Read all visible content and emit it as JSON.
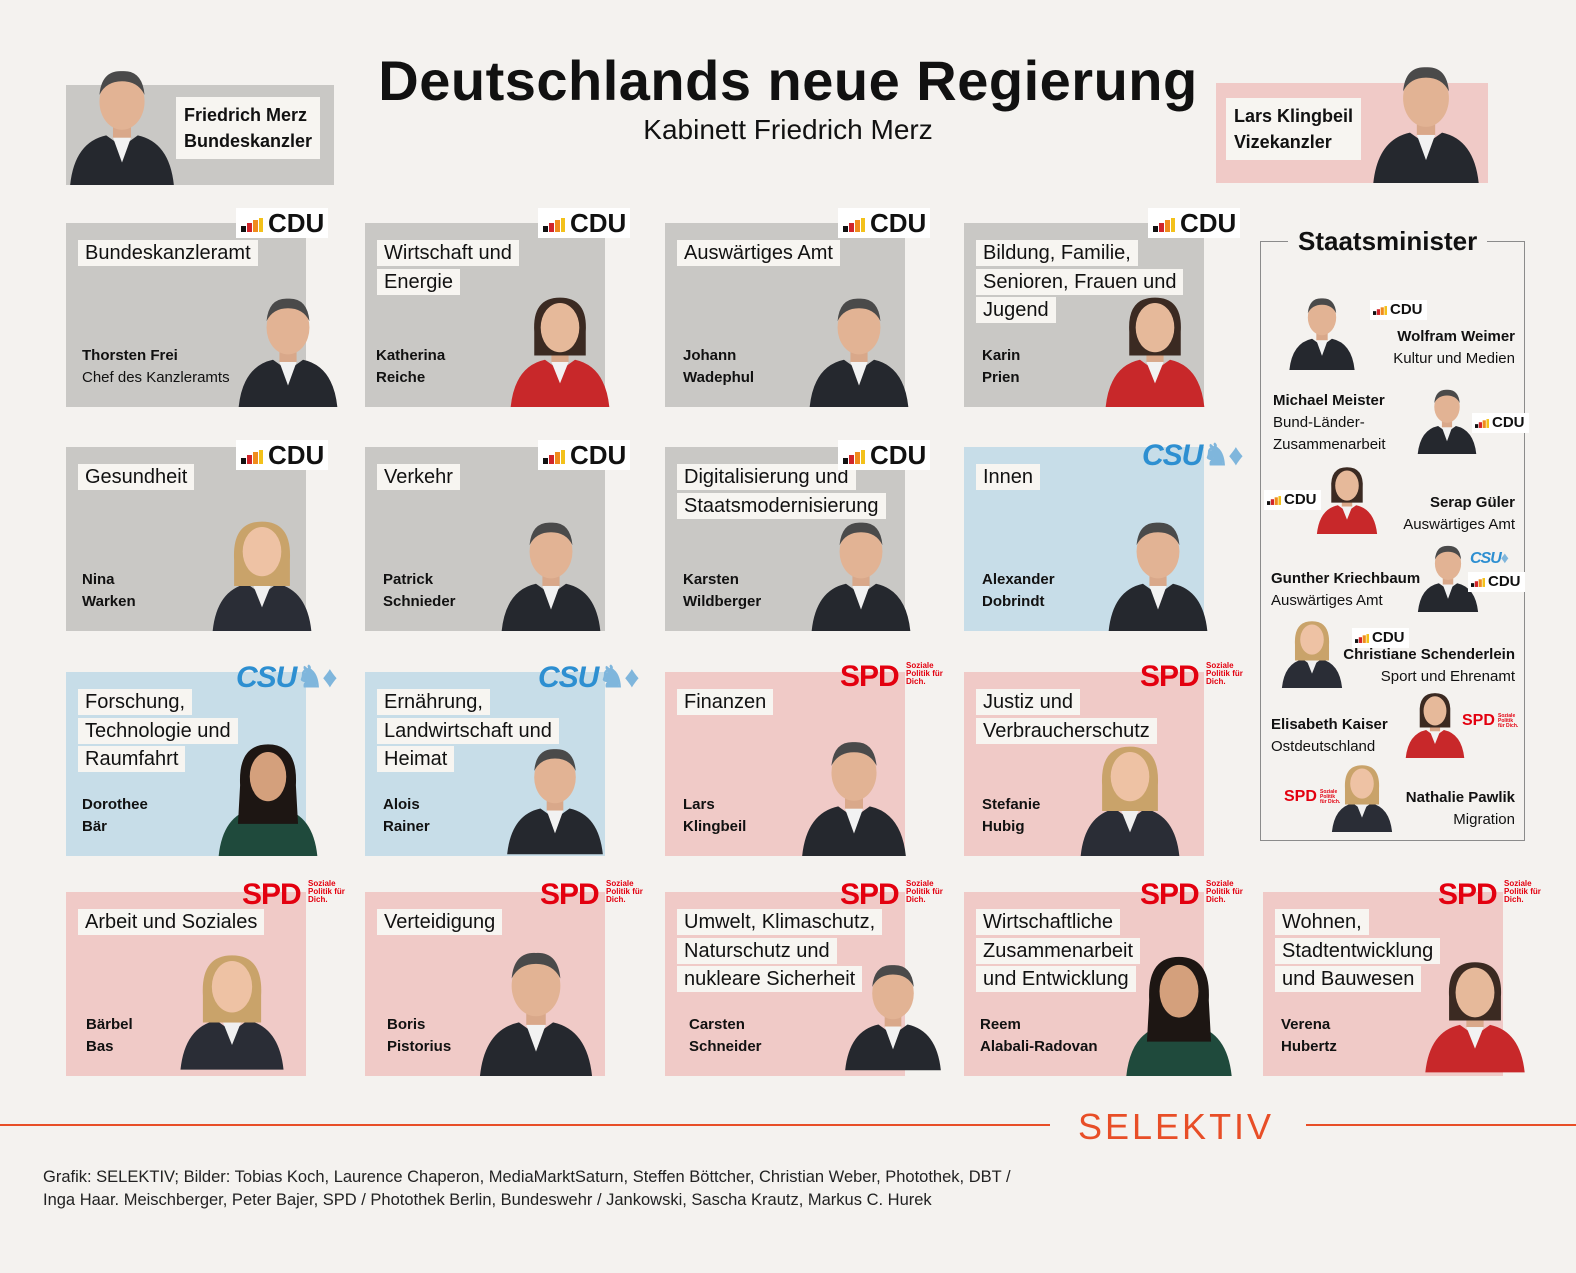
{
  "header": {
    "title": "Deutschlands neue Regierung",
    "subtitle": "Kabinett Friedrich Merz"
  },
  "chancellor": {
    "name": "Friedrich Merz",
    "role": "Bundeskanzler"
  },
  "vice": {
    "name": "Lars Klingbeil",
    "role": "Vizekanzler"
  },
  "ministries": [
    {
      "label": "Bundeskanzleramt",
      "name": "Thorsten Frei",
      "role": "Chef des Kanzleramts",
      "party": "CDU"
    },
    {
      "label": "Wirtschaft und Energie",
      "name1": "Katherina",
      "name2": "Reiche",
      "party": "CDU"
    },
    {
      "label": "Auswärtiges Amt",
      "name1": "Johann",
      "name2": "Wadephul",
      "party": "CDU"
    },
    {
      "label": "Bildung, Familie, Senioren, Frauen und Jugend",
      "name1": "Karin",
      "name2": "Prien",
      "party": "CDU"
    },
    {
      "label": "Gesundheit",
      "name1": "Nina",
      "name2": "Warken",
      "party": "CDU"
    },
    {
      "label": "Verkehr",
      "name1": "Patrick",
      "name2": "Schnieder",
      "party": "CDU"
    },
    {
      "label": "Digitalisierung und Staatsmodernisierung",
      "name1": "Karsten",
      "name2": "Wildberger",
      "party": "CDU"
    },
    {
      "label": "Innen",
      "name1": "Alexander",
      "name2": "Dobrindt",
      "party": "CSU"
    },
    {
      "label": "Forschung, Technologie und Raumfahrt",
      "name1": "Dorothee",
      "name2": "Bär",
      "party": "CSU"
    },
    {
      "label": "Ernährung, Landwirtschaft und Heimat",
      "name1": "Alois",
      "name2": "Rainer",
      "party": "CSU"
    },
    {
      "label": "Finanzen",
      "name1": "Lars",
      "name2": "Klingbeil",
      "party": "SPD"
    },
    {
      "label": "Justiz und Verbraucherschutz",
      "name1": "Stefanie",
      "name2": "Hubig",
      "party": "SPD"
    },
    {
      "label": "Arbeit und Soziales",
      "name1": "Bärbel",
      "name2": "Bas",
      "party": "SPD"
    },
    {
      "label": "Verteidigung",
      "name1": "Boris",
      "name2": "Pistorius",
      "party": "SPD"
    },
    {
      "label": "Umwelt, Klimaschutz, Naturschutz und nukleare Sicherheit",
      "name1": "Carsten",
      "name2": "Schneider",
      "party": "SPD"
    },
    {
      "label": "Wirtschaftliche Zusammenarbeit und Entwicklung",
      "name1": "Reem",
      "name2": "Alabali-Radovan",
      "party": "SPD"
    },
    {
      "label": "Wohnen, Stadtentwicklung und Bauwesen",
      "name1": "Verena",
      "name2": "Hubertz",
      "party": "SPD"
    }
  ],
  "party_logos": {
    "cdu": "CDU",
    "csu": "CSU",
    "spd": "SPD",
    "spd_tagline": "Soziale Politik für Dich."
  },
  "staatsminister": {
    "title": "Staatsminister",
    "items": [
      {
        "name": "Wolfram Weimer",
        "role": "Kultur und Medien",
        "party": "CDU"
      },
      {
        "name": "Michael Meister",
        "role1": "Bund-Länder-",
        "role2": "Zusammenarbeit",
        "party": "CDU"
      },
      {
        "name": "Serap Güler",
        "role": "Auswärtiges Amt",
        "party": "CDU"
      },
      {
        "name": "Gunther Kriechbaum",
        "role": "Auswärtiges Amt",
        "party": "CSU / CDU"
      },
      {
        "name": "Christiane Schenderlein",
        "role": "Sport und Ehrenamt",
        "party": "CDU"
      },
      {
        "name": "Elisabeth Kaiser",
        "role": "Ostdeutschland",
        "party": "SPD"
      },
      {
        "name": "Nathalie Pawlik",
        "role": "Migration",
        "party": "SPD"
      }
    ]
  },
  "footer": {
    "brand": "SELEKTIV",
    "credits": "Grafik: SELEKTIV; Bilder: Tobias Koch, Laurence Chaperon, MediaMarktSaturn, Steffen Böttcher, Christian Weber, Photothek, DBT / Inga Haar. Meischberger, Peter Bajer, SPD / Photothek Berlin, Bundeswehr / Jankowski, Sascha Krautz, Markus C. Hurek"
  },
  "colors": {
    "cdu_bg": "#c9c8c5",
    "csu_bg": "#c7dde8",
    "spd_bg": "#f0cac7",
    "accent": "#e84e27",
    "spd_red": "#e3000f",
    "csu_blue": "#2d8fd1"
  }
}
